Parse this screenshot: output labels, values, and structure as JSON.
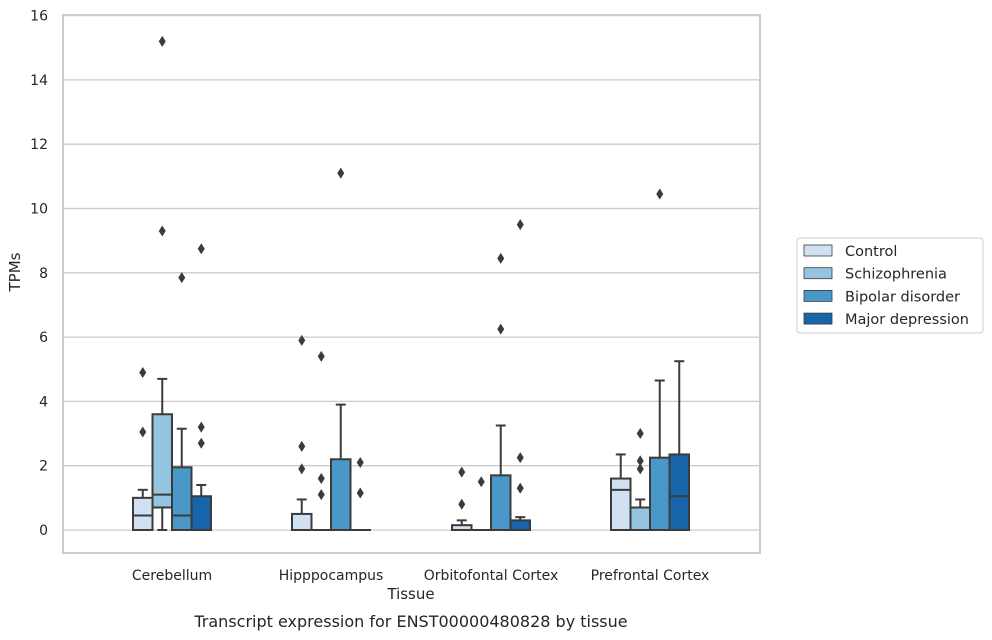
{
  "chart_data": {
    "type": "box",
    "title": "",
    "caption": "Transcript expression for ENST00000480828 by tissue",
    "xlabel": "Tissue",
    "ylabel": "TPMs",
    "ylim": [
      -0.7,
      16
    ],
    "yticks": [
      0,
      2,
      4,
      6,
      8,
      10,
      12,
      14,
      16
    ],
    "grid": true,
    "legend_position": "right",
    "categories": [
      "Cerebellum",
      "Hipppocampus",
      "Orbitofontal Cortex",
      "Prefrontal Cortex"
    ],
    "series": [
      {
        "name": "Control",
        "color": "#d0e1f2",
        "boxes": [
          {
            "q1": 0,
            "median": 0.45,
            "q3": 1.0,
            "whisker_low": 0,
            "whisker_high": 1.25,
            "outliers": [
              3.05,
              4.9
            ]
          },
          {
            "q1": 0,
            "median": 0,
            "q3": 0.5,
            "whisker_low": 0,
            "whisker_high": 0.95,
            "outliers": [
              1.9,
              2.6,
              5.9
            ]
          },
          {
            "q1": 0,
            "median": 0,
            "q3": 0.15,
            "whisker_low": 0,
            "whisker_high": 0.3,
            "outliers": [
              0.8,
              1.8
            ]
          },
          {
            "q1": 0,
            "median": 1.25,
            "q3": 1.6,
            "whisker_low": 0,
            "whisker_high": 2.35,
            "outliers": []
          }
        ]
      },
      {
        "name": "Schizophrenia",
        "color": "#94c4df",
        "boxes": [
          {
            "q1": 0.7,
            "median": 1.1,
            "q3": 3.6,
            "whisker_low": 0,
            "whisker_high": 4.7,
            "outliers": [
              9.3,
              15.2
            ]
          },
          {
            "q1": 0,
            "median": 0,
            "q3": 0,
            "whisker_low": 0,
            "whisker_high": 0,
            "outliers": [
              1.1,
              1.6,
              5.4
            ]
          },
          {
            "q1": 0,
            "median": 0,
            "q3": 0,
            "whisker_low": 0,
            "whisker_high": 0,
            "outliers": [
              1.5
            ]
          },
          {
            "q1": 0,
            "median": 0,
            "q3": 0.7,
            "whisker_low": 0,
            "whisker_high": 0.95,
            "outliers": [
              1.9,
              2.15,
              3.0
            ]
          }
        ]
      },
      {
        "name": "Bipolar disorder",
        "color": "#4a98c9",
        "boxes": [
          {
            "q1": 0,
            "median": 0.45,
            "q3": 1.95,
            "whisker_low": 0,
            "whisker_high": 3.15,
            "outliers": [
              7.85
            ]
          },
          {
            "q1": 0,
            "median": 0,
            "q3": 2.2,
            "whisker_low": 0,
            "whisker_high": 3.9,
            "outliers": [
              11.1
            ]
          },
          {
            "q1": 0,
            "median": 0,
            "q3": 1.7,
            "whisker_low": 0,
            "whisker_high": 3.25,
            "outliers": [
              6.25,
              8.45
            ]
          },
          {
            "q1": 0,
            "median": 0,
            "q3": 2.25,
            "whisker_low": 0,
            "whisker_high": 4.65,
            "outliers": [
              10.45
            ]
          }
        ]
      },
      {
        "name": "Major depression",
        "color": "#1764ab",
        "boxes": [
          {
            "q1": 0,
            "median": 0,
            "q3": 1.05,
            "whisker_low": 0,
            "whisker_high": 1.4,
            "outliers": [
              2.7,
              3.2,
              8.75
            ]
          },
          {
            "q1": 0,
            "median": 0,
            "q3": 0,
            "whisker_low": 0,
            "whisker_high": 0,
            "outliers": [
              1.15,
              2.1
            ]
          },
          {
            "q1": 0,
            "median": 0,
            "q3": 0.3,
            "whisker_low": 0,
            "whisker_high": 0.4,
            "outliers": [
              1.3,
              2.25,
              9.5
            ]
          },
          {
            "q1": 0,
            "median": 1.05,
            "q3": 2.35,
            "whisker_low": 0,
            "whisker_high": 5.25,
            "outliers": []
          }
        ]
      }
    ]
  }
}
